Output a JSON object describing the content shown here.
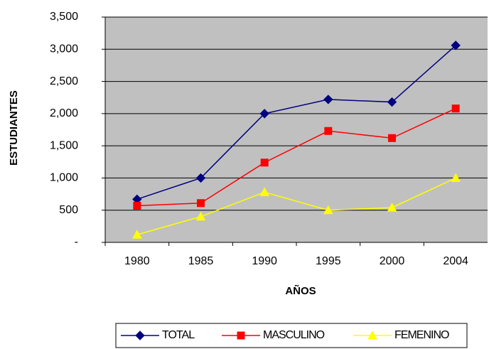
{
  "chart_data": {
    "type": "line",
    "x_label": "AÑOS",
    "y_label": "ESTUDIANTES",
    "categories": [
      "1980",
      "1985",
      "1990",
      "1995",
      "2000",
      "2004"
    ],
    "series": [
      {
        "name": "TOTAL",
        "color": "#000080",
        "marker": "diamond",
        "values": [
          670,
          1000,
          2000,
          2220,
          2180,
          3060
        ]
      },
      {
        "name": "MASCULINO",
        "color": "#ff0000",
        "marker": "square",
        "values": [
          570,
          610,
          1240,
          1730,
          1620,
          2080
        ]
      },
      {
        "name": "FEMENINO",
        "color": "#ffff00",
        "marker": "triangle",
        "values": [
          120,
          400,
          780,
          500,
          540,
          1000
        ]
      }
    ],
    "ylim": [
      0,
      3500
    ],
    "yticks": [
      {
        "value": 0,
        "label": "-"
      },
      500,
      {
        "value": 1000,
        "label": "1,000"
      },
      {
        "value": 1500,
        "label": "1,500"
      },
      {
        "value": 2000,
        "label": "2,000"
      },
      {
        "value": 2500,
        "label": "2,500"
      },
      {
        "value": 3000,
        "label": "3,000"
      },
      {
        "value": 3500,
        "label": "3,500"
      }
    ],
    "grid": true,
    "legend": "bottom",
    "background": "#c0c0c0"
  }
}
